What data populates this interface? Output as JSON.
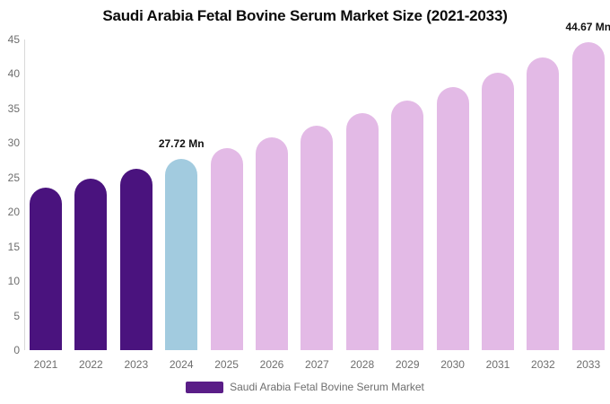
{
  "chart_data": {
    "type": "bar",
    "title": "Saudi Arabia Fetal Bovine Serum Market Size (2021-2033)",
    "xlabel": "",
    "ylabel": "",
    "categories": [
      "2021",
      "2022",
      "2023",
      "2024",
      "2025",
      "2026",
      "2027",
      "2028",
      "2029",
      "2030",
      "2031",
      "2032",
      "2033"
    ],
    "values": [
      23.6,
      24.9,
      26.3,
      27.72,
      29.2,
      30.8,
      32.5,
      34.3,
      36.1,
      38.1,
      40.2,
      42.4,
      44.67
    ],
    "unit": "Mn",
    "ylim": [
      0,
      45
    ],
    "yticks": [
      0,
      5,
      10,
      15,
      20,
      25,
      30,
      35,
      40,
      45
    ],
    "grid": false,
    "bar_colors": [
      "#4a137e",
      "#4a137e",
      "#4a137e",
      "#a2cbdf",
      "#e3bae6",
      "#e3bae6",
      "#e3bae6",
      "#e3bae6",
      "#e3bae6",
      "#e3bae6",
      "#e3bae6",
      "#e3bae6",
      "#e3bae6"
    ],
    "colors": {
      "historical_bar": "#4a137e",
      "highlight_bar": "#a2cbdf",
      "forecast_bar": "#e3bae6",
      "axis_line": "#d9d9d9",
      "tick_text": "#6e6e6e",
      "title_text": "#0b0b0b",
      "legend_swatch": "#5a1d87"
    },
    "annotations": [
      {
        "category": "2024",
        "text": "27.72 Mn"
      },
      {
        "category": "2033",
        "text": "44.67 Mn"
      }
    ],
    "legend": {
      "position": "bottom",
      "label": "Saudi Arabia Fetal Bovine Serum Market"
    }
  }
}
